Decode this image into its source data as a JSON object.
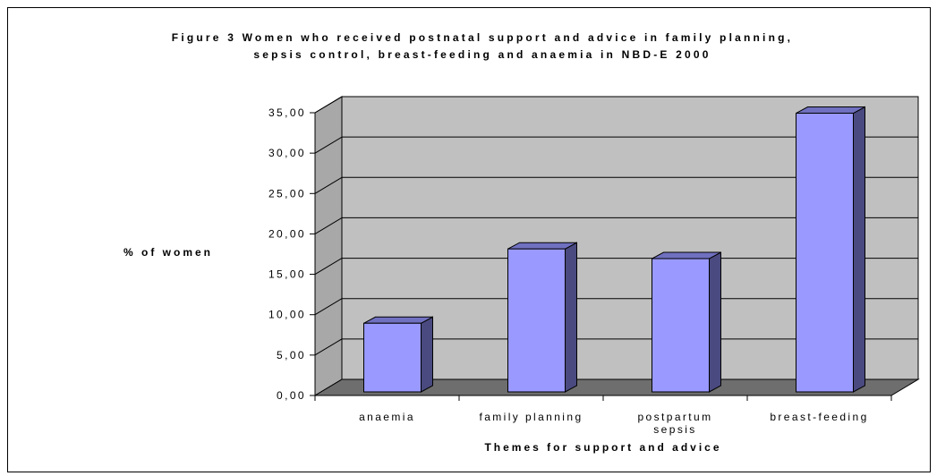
{
  "chart_data": {
    "type": "bar",
    "title": [
      "Figure 3 Women who received postnatal support and advice in family planning,",
      "sepsis control, breast-feeding and anaemia in NBD-E 2000"
    ],
    "xlabel": "Themes for support and advice",
    "ylabel": "% of women",
    "categories": [
      [
        "anaemia"
      ],
      [
        "family planning"
      ],
      [
        "postpartum",
        "sepsis"
      ],
      [
        "breast-feeding"
      ]
    ],
    "values": [
      8.5,
      17.7,
      16.5,
      34.5
    ],
    "ylim": [
      0,
      35
    ],
    "yticks": [
      "0,00",
      "5,00",
      "10,00",
      "15,00",
      "20,00",
      "25,00",
      "30,00",
      "35,00"
    ],
    "grid": true,
    "legend": "none",
    "three_d": true
  },
  "colors": {
    "bar_front": "#9999ff",
    "bar_side": "#4a4a80",
    "bar_top": "#7070c0",
    "back_wall": "#c0c0c0",
    "side_wall": "#a8a8a8",
    "floor": "#6e6e6e",
    "gridline": "#000000"
  }
}
